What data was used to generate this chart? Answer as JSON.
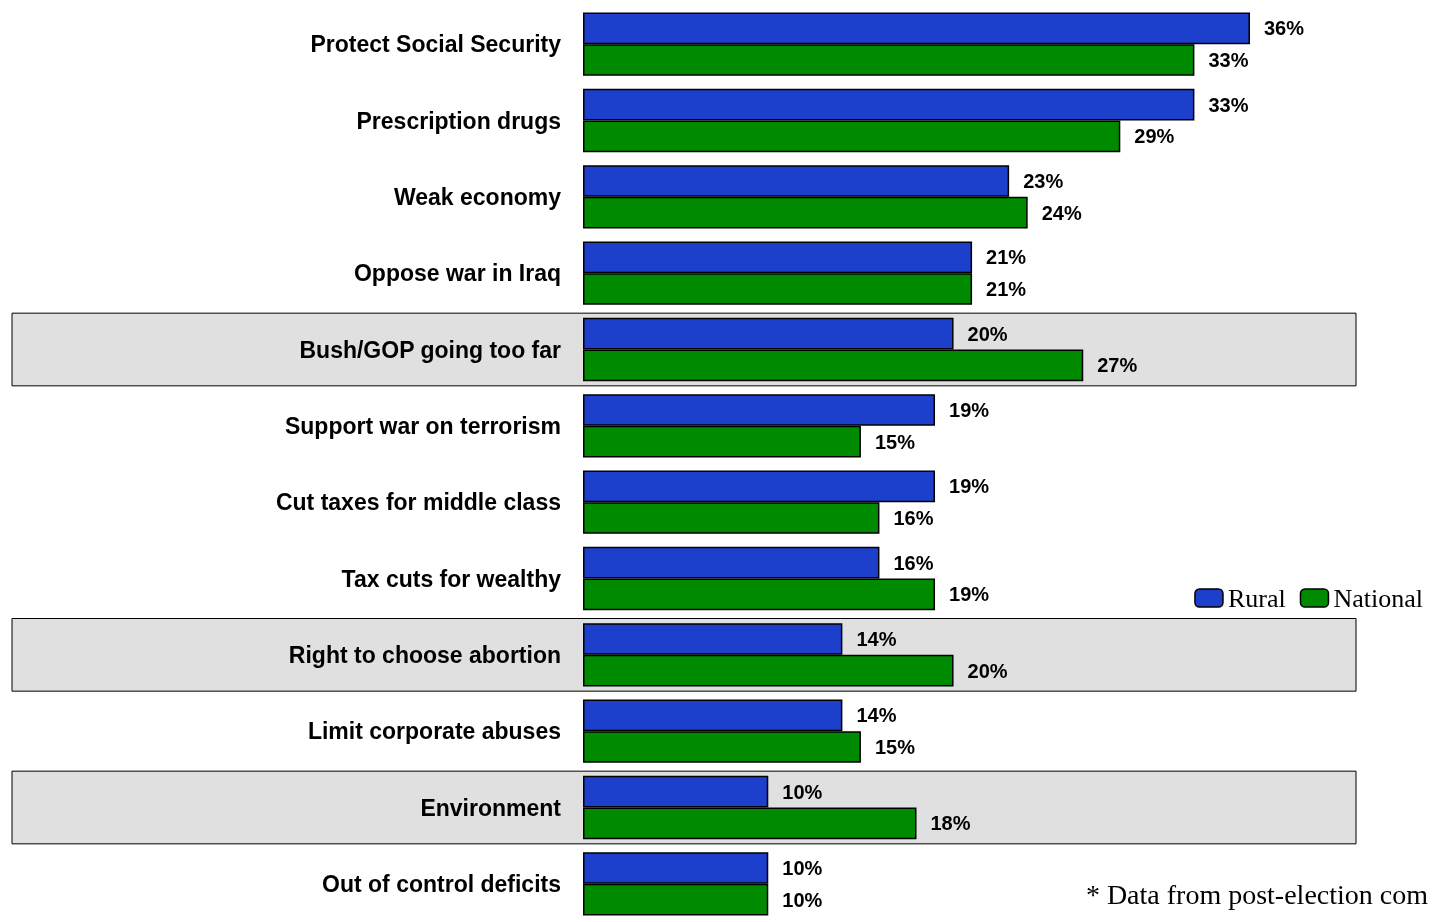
{
  "chart_data": {
    "type": "bar",
    "orientation": "horizontal",
    "categories": [
      "Protect Social Security",
      "Prescription drugs",
      "Weak economy",
      "Oppose war in Iraq",
      "Bush/GOP going too far",
      "Support war on terrorism",
      "Cut taxes for middle class",
      "Tax cuts for wealthy",
      "Right to choose abortion",
      "Limit corporate abuses",
      "Environment",
      "Out of control deficits"
    ],
    "series": [
      {
        "name": "Rural",
        "color": "#1c3fcc",
        "values": [
          36,
          33,
          23,
          21,
          20,
          19,
          19,
          16,
          14,
          14,
          10,
          10
        ],
        "value_labels": [
          "36%",
          "33%",
          "23%",
          "21%",
          "20%",
          "19%",
          "19%",
          "16%",
          "14%",
          "14%",
          "10%",
          "10%"
        ]
      },
      {
        "name": "National",
        "color": "#008a00",
        "values": [
          33,
          29,
          24,
          21,
          27,
          15,
          16,
          19,
          20,
          15,
          18,
          10
        ],
        "value_labels": [
          "33%",
          "29%",
          "24%",
          "21%",
          "27%",
          "15%",
          "16%",
          "19%",
          "20%",
          "15%",
          "18%",
          "10%"
        ]
      }
    ],
    "legend": "right",
    "bands": [
      {
        "axis": "y",
        "from": "Bush/GOP going too far",
        "to": "Bush/GOP going too far",
        "color": "#e0e0e0"
      },
      {
        "axis": "y",
        "from": "Right to choose abortion",
        "to": "Right to choose abortion",
        "color": "#e0e0e0"
      },
      {
        "axis": "y",
        "from": "Environment",
        "to": "Environment",
        "color": "#e0e0e0"
      }
    ],
    "annotations": [
      "* Data from post-election com"
    ]
  }
}
